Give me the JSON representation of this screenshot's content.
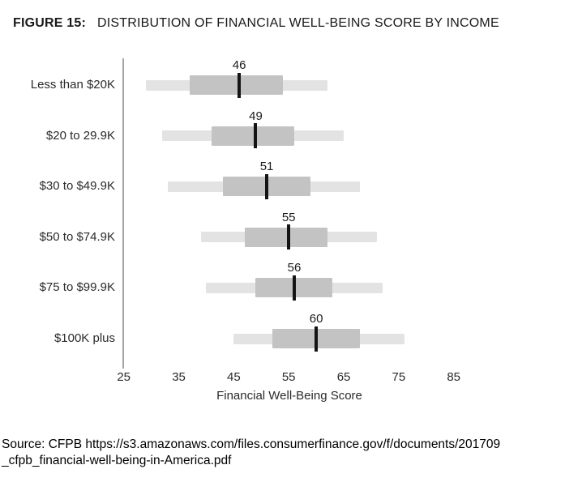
{
  "title": {
    "prefix": "FIGURE 15:",
    "text": "DISTRIBUTION OF FINANCIAL WELL-BEING SCORE BY INCOME"
  },
  "source": {
    "line1": "Source: CFPB https://s3.amazonaws.com/files.consumerfinance.gov/f/documents/201709",
    "line2": "_cfpb_financial-well-being-in-America.pdf"
  },
  "colors": {
    "outer_bar": "#e3e3e3",
    "inner_box": "#c3c3c3",
    "median_tick": "#141414",
    "axis_line": "#a6a6a6",
    "text": "#1f1f1f"
  },
  "chart_data": {
    "type": "boxplot-horizontal",
    "title": "FIGURE 15: DISTRIBUTION OF FINANCIAL WELL-BEING SCORE BY INCOME",
    "xlabel": "Financial Well-Being Score",
    "xlim": [
      25,
      85
    ],
    "x_ticks": [
      25,
      35,
      45,
      55,
      65,
      75,
      85
    ],
    "grid": false,
    "legend": false,
    "categories": [
      "Less than $20K",
      "$20 to 29.9K",
      "$30 to $49.9K",
      "$50 to $74.9K",
      "$75 to $99.9K",
      "$100K plus"
    ],
    "series": [
      {
        "category": "Less than $20K",
        "outer_range": [
          29,
          62
        ],
        "box_range": [
          37,
          54
        ],
        "median": 46
      },
      {
        "category": "$20 to 29.9K",
        "outer_range": [
          32,
          65
        ],
        "box_range": [
          41,
          56
        ],
        "median": 49
      },
      {
        "category": "$30 to $49.9K",
        "outer_range": [
          33,
          68
        ],
        "box_range": [
          43,
          59
        ],
        "median": 51
      },
      {
        "category": "$50 to $74.9K",
        "outer_range": [
          39,
          71
        ],
        "box_range": [
          47,
          62
        ],
        "median": 55
      },
      {
        "category": "$75 to $99.9K",
        "outer_range": [
          40,
          72
        ],
        "box_range": [
          49,
          63
        ],
        "median": 56
      },
      {
        "category": "$100K plus",
        "outer_range": [
          45,
          76
        ],
        "box_range": [
          52,
          68
        ],
        "median": 60
      }
    ]
  }
}
